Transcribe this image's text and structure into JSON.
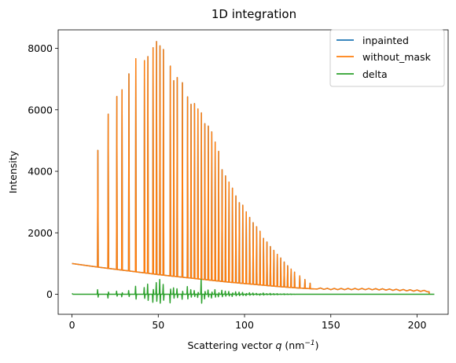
{
  "chart_data": {
    "type": "line",
    "title": "1D integration",
    "xlabel_prefix": "Scattering vector ",
    "xlabel_var": "q",
    "xlabel_unit": "(nm",
    "xlabel_exp": "−1",
    "xlabel_close": ")",
    "ylabel": "Intensity",
    "xlim": [
      -8,
      218
    ],
    "ylim": [
      -650,
      8600
    ],
    "xticks": [
      0,
      50,
      100,
      150,
      200
    ],
    "yticks": [
      0,
      2000,
      4000,
      6000,
      8000
    ],
    "grid": false,
    "legend_position": "top-right",
    "series": [
      {
        "name": "inpainted",
        "color": "#1f77b4"
      },
      {
        "name": "without_mask",
        "color": "#ff7f0e"
      },
      {
        "name": "delta",
        "color": "#2ca02c"
      }
    ],
    "background": {
      "x": [
        0,
        5,
        10,
        20,
        30,
        40,
        50,
        60,
        70,
        80,
        90,
        100,
        110,
        120,
        130,
        140,
        150,
        160,
        170,
        180,
        190,
        200,
        207
      ],
      "y": [
        1000,
        960,
        920,
        850,
        780,
        710,
        640,
        580,
        520,
        460,
        400,
        350,
        300,
        250,
        210,
        175,
        150,
        150,
        150,
        140,
        120,
        100,
        80
      ]
    },
    "peaks": {
      "x": [
        15,
        21,
        26,
        29,
        33,
        37,
        42,
        44,
        47,
        49,
        51,
        53,
        57,
        59,
        61,
        64,
        67,
        69,
        71,
        73,
        75,
        77,
        79,
        81,
        83,
        85,
        87,
        89,
        91,
        93,
        95,
        97,
        99,
        101,
        103,
        105,
        107,
        109,
        111,
        113,
        115,
        117,
        119,
        121,
        123,
        125,
        127,
        129,
        132,
        135,
        138
      ],
      "y": [
        4680,
        5860,
        6430,
        6650,
        7170,
        7660,
        7600,
        7730,
        8020,
        8220,
        8080,
        7960,
        7420,
        6950,
        7050,
        6880,
        6420,
        6180,
        6200,
        6030,
        5900,
        5550,
        5470,
        5280,
        4950,
        4650,
        4050,
        3850,
        3650,
        3450,
        3200,
        2980,
        2900,
        2680,
        2500,
        2330,
        2200,
        2050,
        1820,
        1700,
        1550,
        1430,
        1300,
        1180,
        1050,
        930,
        820,
        720,
        600,
        480,
        360
      ]
    },
    "delta": {
      "x": [
        0,
        1,
        15,
        21,
        26,
        29,
        33,
        37,
        42,
        44,
        47,
        49,
        51,
        53,
        57,
        59,
        61,
        64,
        67,
        69,
        71,
        73,
        75,
        77,
        79,
        81,
        83,
        85,
        87,
        89,
        91,
        93,
        95,
        97,
        99,
        101,
        103,
        105,
        107,
        109,
        111,
        113,
        115,
        117,
        119,
        121,
        123,
        125,
        127,
        129
      ],
      "y": [
        30,
        0,
        150,
        -120,
        100,
        -80,
        120,
        260,
        220,
        330,
        -260,
        380,
        480,
        320,
        -280,
        210,
        180,
        -160,
        250,
        150,
        120,
        -100,
        480,
        -150,
        140,
        -120,
        150,
        -80,
        130,
        100,
        90,
        -70,
        80,
        70,
        60,
        -40,
        50,
        40,
        30,
        -30,
        40,
        20,
        30,
        20,
        20,
        10,
        15,
        10,
        10,
        5
      ]
    }
  }
}
